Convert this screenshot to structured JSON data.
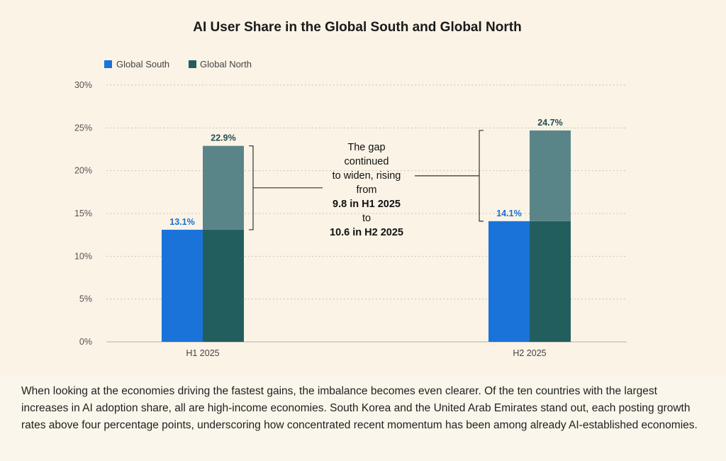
{
  "chart_data": {
    "type": "bar",
    "title": "AI User Share in the Global South and Global North",
    "categories": [
      "H1 2025",
      "H2 2025"
    ],
    "series": [
      {
        "name": "Global South",
        "values": [
          13.1,
          14.1
        ],
        "color": "#1a73d9"
      },
      {
        "name": "Global North",
        "values": [
          22.9,
          24.7
        ],
        "color": "#235e5f",
        "upper_color": "#5a8588"
      }
    ],
    "value_labels": {
      "Global South": [
        "13.1%",
        "14.1%"
      ],
      "Global North": [
        "22.9%",
        "24.7%"
      ]
    },
    "y_ticks": [
      "0%",
      "5%",
      "10%",
      "15%",
      "20%",
      "25%",
      "30%"
    ],
    "ylim": [
      0,
      30
    ],
    "grid": true,
    "legend_position": "top-left",
    "annotation": {
      "lines": [
        "The gap",
        "continued",
        "to widen, rising",
        "from"
      ],
      "bold_1": "9.8 in H1 2025",
      "middle": "to",
      "bold_2": "10.6 in H2 2025"
    }
  },
  "caption": "When looking at the economies driving the fastest gains, the imbalance becomes even clearer. Of the ten countries with the largest increases in AI adoption share, all are high-income economies. South Korea and the United Arab Emirates stand out, each posting growth rates above four percentage points, underscoring how concentrated recent momentum has been among already AI-established economies."
}
